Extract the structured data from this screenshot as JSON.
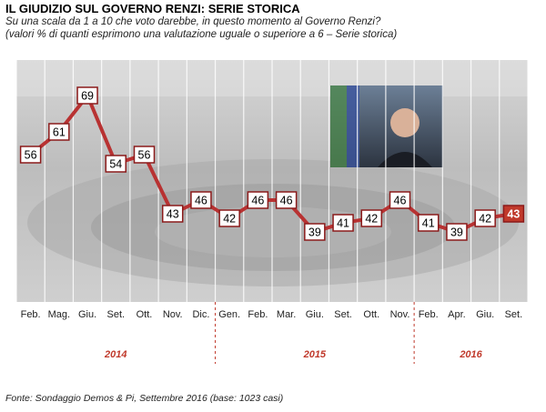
{
  "header": {
    "title": "IL GIUDIZIO  SUL GOVERNO RENZI: SERIE STORICA",
    "subtitle_line1": "Su una scala da 1 a 10 che voto darebbe, in questo momento al Governo Renzi?",
    "subtitle_line2": "(valori % di quanti esprimono una valutazione uguale o superiore a 6 – Serie storica)"
  },
  "footer": {
    "source": "Fonte: Sondaggio Demos & Pi, Settembre 2016 (base: 1023 casi)"
  },
  "colors": {
    "line": "#b83232",
    "highlight_fill": "#c0392b",
    "label_border": "#8b1a1a",
    "divider": "#c0392b",
    "year_label": "#c0392b"
  },
  "chart_data": {
    "type": "line",
    "categories": [
      "Feb.",
      "Mag.",
      "Giu.",
      "Set.",
      "Ott.",
      "Nov.",
      "Dic.",
      "Gen.",
      "Feb.",
      "Mar.",
      "Giu.",
      "Set.",
      "Ott.",
      "Nov.",
      "Feb.",
      "Apr.",
      "Giu.",
      "Set."
    ],
    "years": [
      {
        "label": "2014",
        "start_index": 0,
        "end_index": 6
      },
      {
        "label": "2015",
        "start_index": 7,
        "end_index": 13
      },
      {
        "label": "2016",
        "start_index": 14,
        "end_index": 17
      }
    ],
    "series": [
      {
        "values": [
          56,
          61,
          69,
          54,
          56,
          43,
          46,
          42,
          46,
          46,
          39,
          41,
          42,
          46,
          41,
          39,
          42,
          43
        ]
      }
    ],
    "highlight_index": 17,
    "ylim": [
      30,
      75
    ],
    "grid": true
  }
}
